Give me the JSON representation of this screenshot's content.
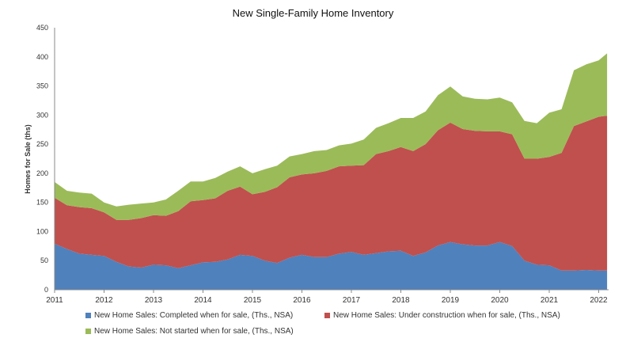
{
  "chart_data": {
    "type": "area",
    "stacked": true,
    "title": "New Single-Family Home Inventory",
    "ylabel": "Homes for Sale (ths)",
    "xlabel": "",
    "ylim": [
      0,
      450
    ],
    "yticks": [
      0,
      50,
      100,
      150,
      200,
      250,
      300,
      350,
      400,
      450
    ],
    "xlim": [
      2011.0,
      2022.2
    ],
    "xticks": [
      "2011",
      "2012",
      "2013",
      "2014",
      "2015",
      "2016",
      "2017",
      "2018",
      "2019",
      "2020",
      "2021",
      "2022"
    ],
    "grid": false,
    "legend_position": "bottom",
    "x": [
      2011.0,
      2011.25,
      2011.5,
      2011.75,
      2012.0,
      2012.25,
      2012.5,
      2012.75,
      2013.0,
      2013.25,
      2013.5,
      2013.75,
      2014.0,
      2014.25,
      2014.5,
      2014.75,
      2015.0,
      2015.25,
      2015.5,
      2015.75,
      2016.0,
      2016.25,
      2016.5,
      2016.75,
      2017.0,
      2017.25,
      2017.5,
      2017.75,
      2018.0,
      2018.25,
      2018.5,
      2018.75,
      2019.0,
      2019.25,
      2019.5,
      2019.75,
      2020.0,
      2020.25,
      2020.5,
      2020.75,
      2021.0,
      2021.25,
      2021.5,
      2021.75,
      2022.0,
      2022.17
    ],
    "series": [
      {
        "name": "New Home Sales: Completed when for sale, (Ths., NSA)",
        "color": "#4f81bd",
        "values": [
          79,
          70,
          62,
          60,
          58,
          48,
          40,
          38,
          43,
          42,
          37,
          42,
          47,
          48,
          52,
          60,
          58,
          50,
          46,
          55,
          60,
          56,
          56,
          62,
          65,
          60,
          63,
          66,
          67,
          58,
          64,
          76,
          82,
          78,
          76,
          76,
          82,
          75,
          50,
          43,
          42,
          33,
          33,
          34,
          33,
          33
        ]
      },
      {
        "name": "New Home Sales: Under construction when for sale, (Ths., NSA)",
        "color": "#c0504d",
        "values": [
          79,
          75,
          80,
          80,
          75,
          72,
          80,
          85,
          85,
          85,
          98,
          110,
          107,
          109,
          118,
          117,
          106,
          118,
          130,
          138,
          138,
          144,
          148,
          150,
          148,
          154,
          170,
          172,
          178,
          180,
          186,
          198,
          205,
          198,
          197,
          196,
          190,
          192,
          175,
          182,
          186,
          202,
          248,
          255,
          264,
          266
        ]
      },
      {
        "name": "New Home Sales: Not started when for sale, (Ths., NSA)",
        "color": "#9bbb59",
        "values": [
          27,
          25,
          25,
          25,
          17,
          23,
          26,
          25,
          22,
          28,
          35,
          34,
          32,
          35,
          33,
          35,
          36,
          39,
          37,
          36,
          35,
          38,
          36,
          36,
          38,
          44,
          45,
          48,
          50,
          57,
          56,
          60,
          62,
          56,
          55,
          55,
          58,
          55,
          65,
          61,
          76,
          75,
          96,
          98,
          97,
          107
        ]
      }
    ]
  }
}
